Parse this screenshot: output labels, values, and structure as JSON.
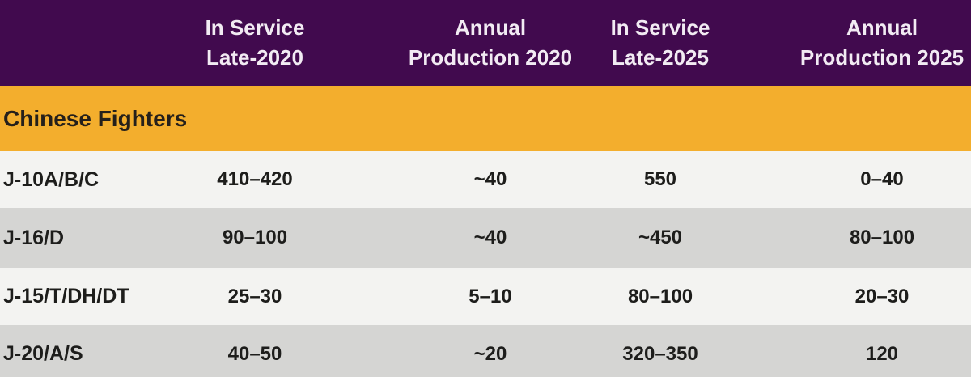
{
  "colors": {
    "header_bg": "#410a4e",
    "header_text": "#f2ebf3",
    "section_bg": "#f3ae2d",
    "section_text": "#25201b",
    "row_light_bg": "#f3f3f1",
    "row_dark_bg": "#d5d5d3",
    "body_text": "#1d1d1b"
  },
  "chart_data": {
    "type": "table",
    "section_title": "Chinese Fighters",
    "column_headers": [
      {
        "line1": "In Service",
        "line2": "Late-2020"
      },
      {
        "line1": "Annual",
        "line2": "Production 2020"
      },
      {
        "line1": "In Service",
        "line2": "Late-2025"
      },
      {
        "line1": "Annual",
        "line2": "Production 2025"
      }
    ],
    "rows": [
      {
        "label": "J-10A/B/C",
        "values": [
          "410–420",
          "~40",
          "550",
          "0–40"
        ]
      },
      {
        "label": "J-16/D",
        "values": [
          "90–100",
          "~40",
          "~450",
          "80–100"
        ]
      },
      {
        "label": "J-15/T/DH/DT",
        "values": [
          "25–30",
          "5–10",
          "80–100",
          "20–30"
        ]
      },
      {
        "label": "J-20/A/S",
        "values": [
          "40–50",
          "~20",
          "320–350",
          "120"
        ]
      }
    ]
  }
}
